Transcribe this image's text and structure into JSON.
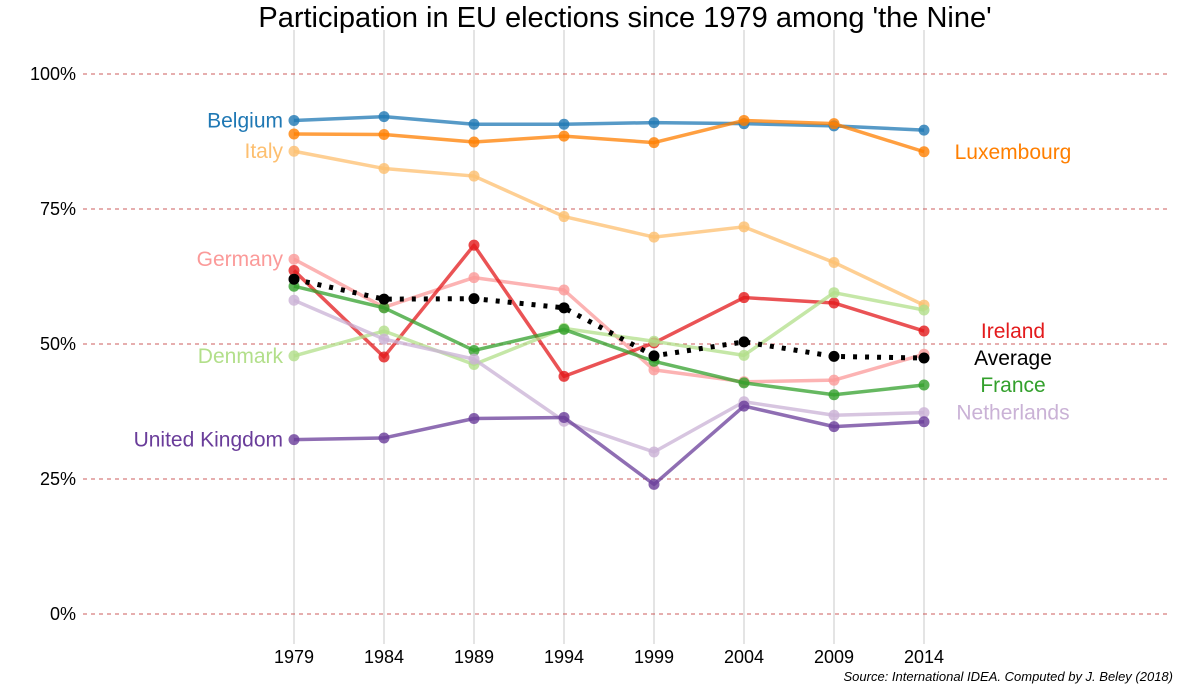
{
  "chart_data": {
    "type": "line",
    "title": "Participation in EU elections since 1979 among 'the Nine'",
    "source": "Source: International IDEA. Computed by J. Beley (2018)",
    "x": [
      "1979",
      "1984",
      "1989",
      "1994",
      "1999",
      "2004",
      "2009",
      "2014"
    ],
    "ylim": [
      0,
      100
    ],
    "yticks": [
      0,
      25,
      50,
      75,
      100
    ],
    "ytick_labels": [
      "0%",
      "25%",
      "50%",
      "75%",
      "100%"
    ],
    "grid": "horizontal dashed",
    "series": [
      {
        "name": "Belgium",
        "color": "#1f78b4",
        "label_side": "left",
        "values": [
          91.4,
          92.1,
          90.7,
          90.7,
          91.0,
          90.8,
          90.4,
          89.6
        ]
      },
      {
        "name": "Luxembourg",
        "color": "#ff7f00",
        "label_side": "right",
        "values": [
          88.9,
          88.8,
          87.4,
          88.5,
          87.3,
          91.4,
          90.8,
          85.6
        ]
      },
      {
        "name": "Italy",
        "color": "#fdbf6f",
        "label_side": "left",
        "values": [
          85.7,
          82.5,
          81.1,
          73.6,
          69.8,
          71.7,
          65.1,
          57.2
        ]
      },
      {
        "name": "Germany",
        "color": "#fb9a99",
        "label_side": "left",
        "values": [
          65.7,
          56.8,
          62.3,
          60.0,
          45.2,
          43.0,
          43.3,
          48.1
        ]
      },
      {
        "name": "Ireland",
        "color": "#e31a1c",
        "label_side": "right",
        "values": [
          63.6,
          47.6,
          68.3,
          44.0,
          50.2,
          58.6,
          57.6,
          52.4
        ]
      },
      {
        "name": "Denmark",
        "color": "#b2df8a",
        "label_side": "left",
        "values": [
          47.8,
          52.4,
          46.2,
          52.9,
          50.5,
          47.9,
          59.5,
          56.3
        ]
      },
      {
        "name": "France",
        "color": "#33a02c",
        "label_side": "right",
        "values": [
          60.7,
          56.7,
          48.8,
          52.7,
          46.8,
          42.8,
          40.6,
          42.4
        ]
      },
      {
        "name": "Netherlands",
        "color": "#cab2d6",
        "label_side": "right",
        "values": [
          58.1,
          50.9,
          47.2,
          35.7,
          30.0,
          39.3,
          36.8,
          37.3
        ]
      },
      {
        "name": "United Kingdom",
        "color": "#6a3d9a",
        "label_side": "left",
        "values": [
          32.3,
          32.6,
          36.2,
          36.4,
          24.0,
          38.5,
          34.7,
          35.6
        ]
      },
      {
        "name": "Average",
        "color": "#000000",
        "label_side": "right",
        "dotted": true,
        "values": [
          62.0,
          58.3,
          58.4,
          56.7,
          47.8,
          50.4,
          47.7,
          47.4
        ]
      }
    ]
  }
}
